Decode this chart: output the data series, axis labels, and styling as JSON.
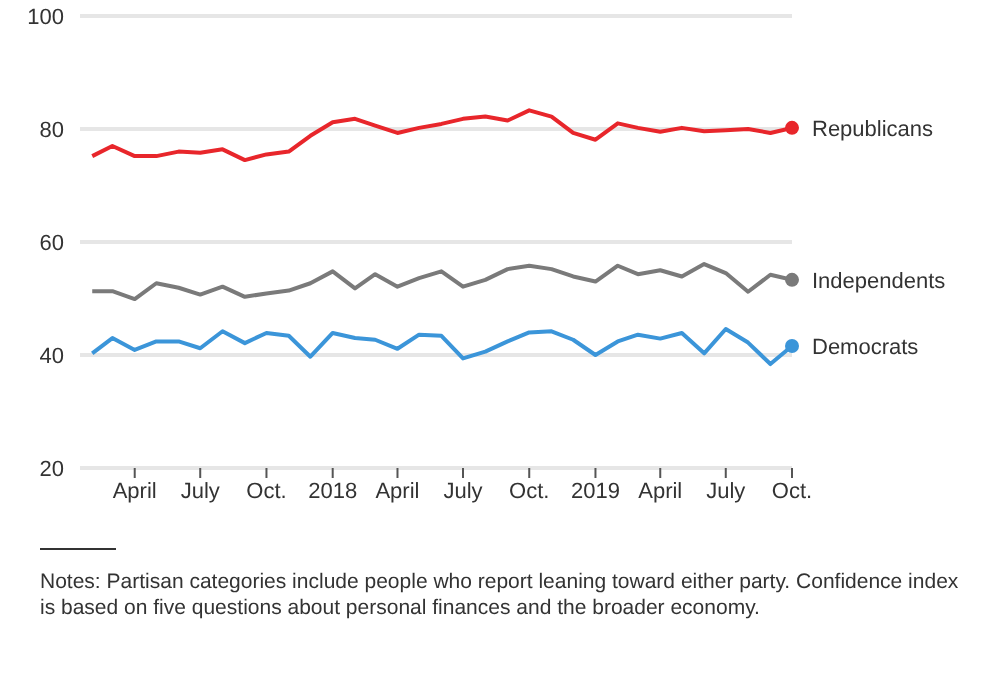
{
  "chart_data": {
    "type": "line",
    "x": [
      "2017-02",
      "2017-03",
      "2017-04",
      "2017-05",
      "2017-06",
      "2017-07",
      "2017-08",
      "2017-09",
      "2017-10",
      "2017-11",
      "2017-12",
      "2018-01",
      "2018-02",
      "2018-03",
      "2018-04",
      "2018-05",
      "2018-06",
      "2018-07",
      "2018-08",
      "2018-09",
      "2018-10",
      "2018-11",
      "2018-12",
      "2019-01",
      "2019-02",
      "2019-03",
      "2019-04",
      "2019-05",
      "2019-06",
      "2019-07",
      "2019-08",
      "2019-09",
      "2019-10"
    ],
    "series": [
      {
        "name": "Republicans",
        "color": "#e8262b",
        "values": [
          75.2,
          77,
          75.2,
          75.2,
          76,
          75.8,
          76.4,
          74.5,
          75.5,
          76,
          78.8,
          81.2,
          81.8,
          80.6,
          79.3,
          80.2,
          80.9,
          81.8,
          82.2,
          81.5,
          83.3,
          82.2,
          79.3,
          78.1,
          81,
          80.2,
          79.5,
          80.2,
          79.6,
          79.8,
          80,
          79.3,
          80.2
        ]
      },
      {
        "name": "Independents",
        "color": "#7a7a7a",
        "values": [
          51.3,
          51.3,
          49.9,
          52.7,
          51.9,
          50.7,
          52.1,
          50.3,
          50.9,
          51.4,
          52.7,
          54.8,
          51.8,
          54.3,
          52.1,
          53.6,
          54.8,
          52.1,
          53.3,
          55.2,
          55.8,
          55.2,
          53.9,
          53,
          55.8,
          54.3,
          55,
          53.9,
          56.1,
          54.5,
          51.2,
          54.2,
          53.3
        ]
      },
      {
        "name": "Democrats",
        "color": "#3b95d9",
        "values": [
          40.3,
          43,
          40.9,
          42.4,
          42.4,
          41.2,
          44.2,
          42.1,
          43.9,
          43.4,
          39.7,
          43.9,
          43,
          42.7,
          41.1,
          43.6,
          43.4,
          39.4,
          40.6,
          42.4,
          44,
          44.2,
          42.7,
          40,
          42.4,
          43.6,
          42.9,
          43.9,
          40.3,
          44.6,
          42.2,
          38.4,
          41.6
        ]
      }
    ],
    "xlim": [
      "2017-01-15",
      "2019-10"
    ],
    "xticks": [
      {
        "value": "2017-04",
        "label": "April"
      },
      {
        "value": "2017-07",
        "label": "July"
      },
      {
        "value": "2017-10",
        "label": "Oct."
      },
      {
        "value": "2018-01",
        "label": "2018"
      },
      {
        "value": "2018-04",
        "label": "April"
      },
      {
        "value": "2018-07",
        "label": "July"
      },
      {
        "value": "2018-10",
        "label": "Oct."
      },
      {
        "value": "2019-01",
        "label": "2019"
      },
      {
        "value": "2019-04",
        "label": "April"
      },
      {
        "value": "2019-07",
        "label": "July"
      },
      {
        "value": "2019-10",
        "label": "Oct."
      }
    ],
    "ylim": [
      20,
      100
    ],
    "yticks": [
      20,
      40,
      60,
      80,
      100
    ],
    "grid": "y",
    "marker": "none",
    "line_style": "solid",
    "annotations": [
      "Notes: Partisan categories include people who report leaning toward either party. Confidence index is based on five questions about personal finances and the broader economy."
    ]
  }
}
